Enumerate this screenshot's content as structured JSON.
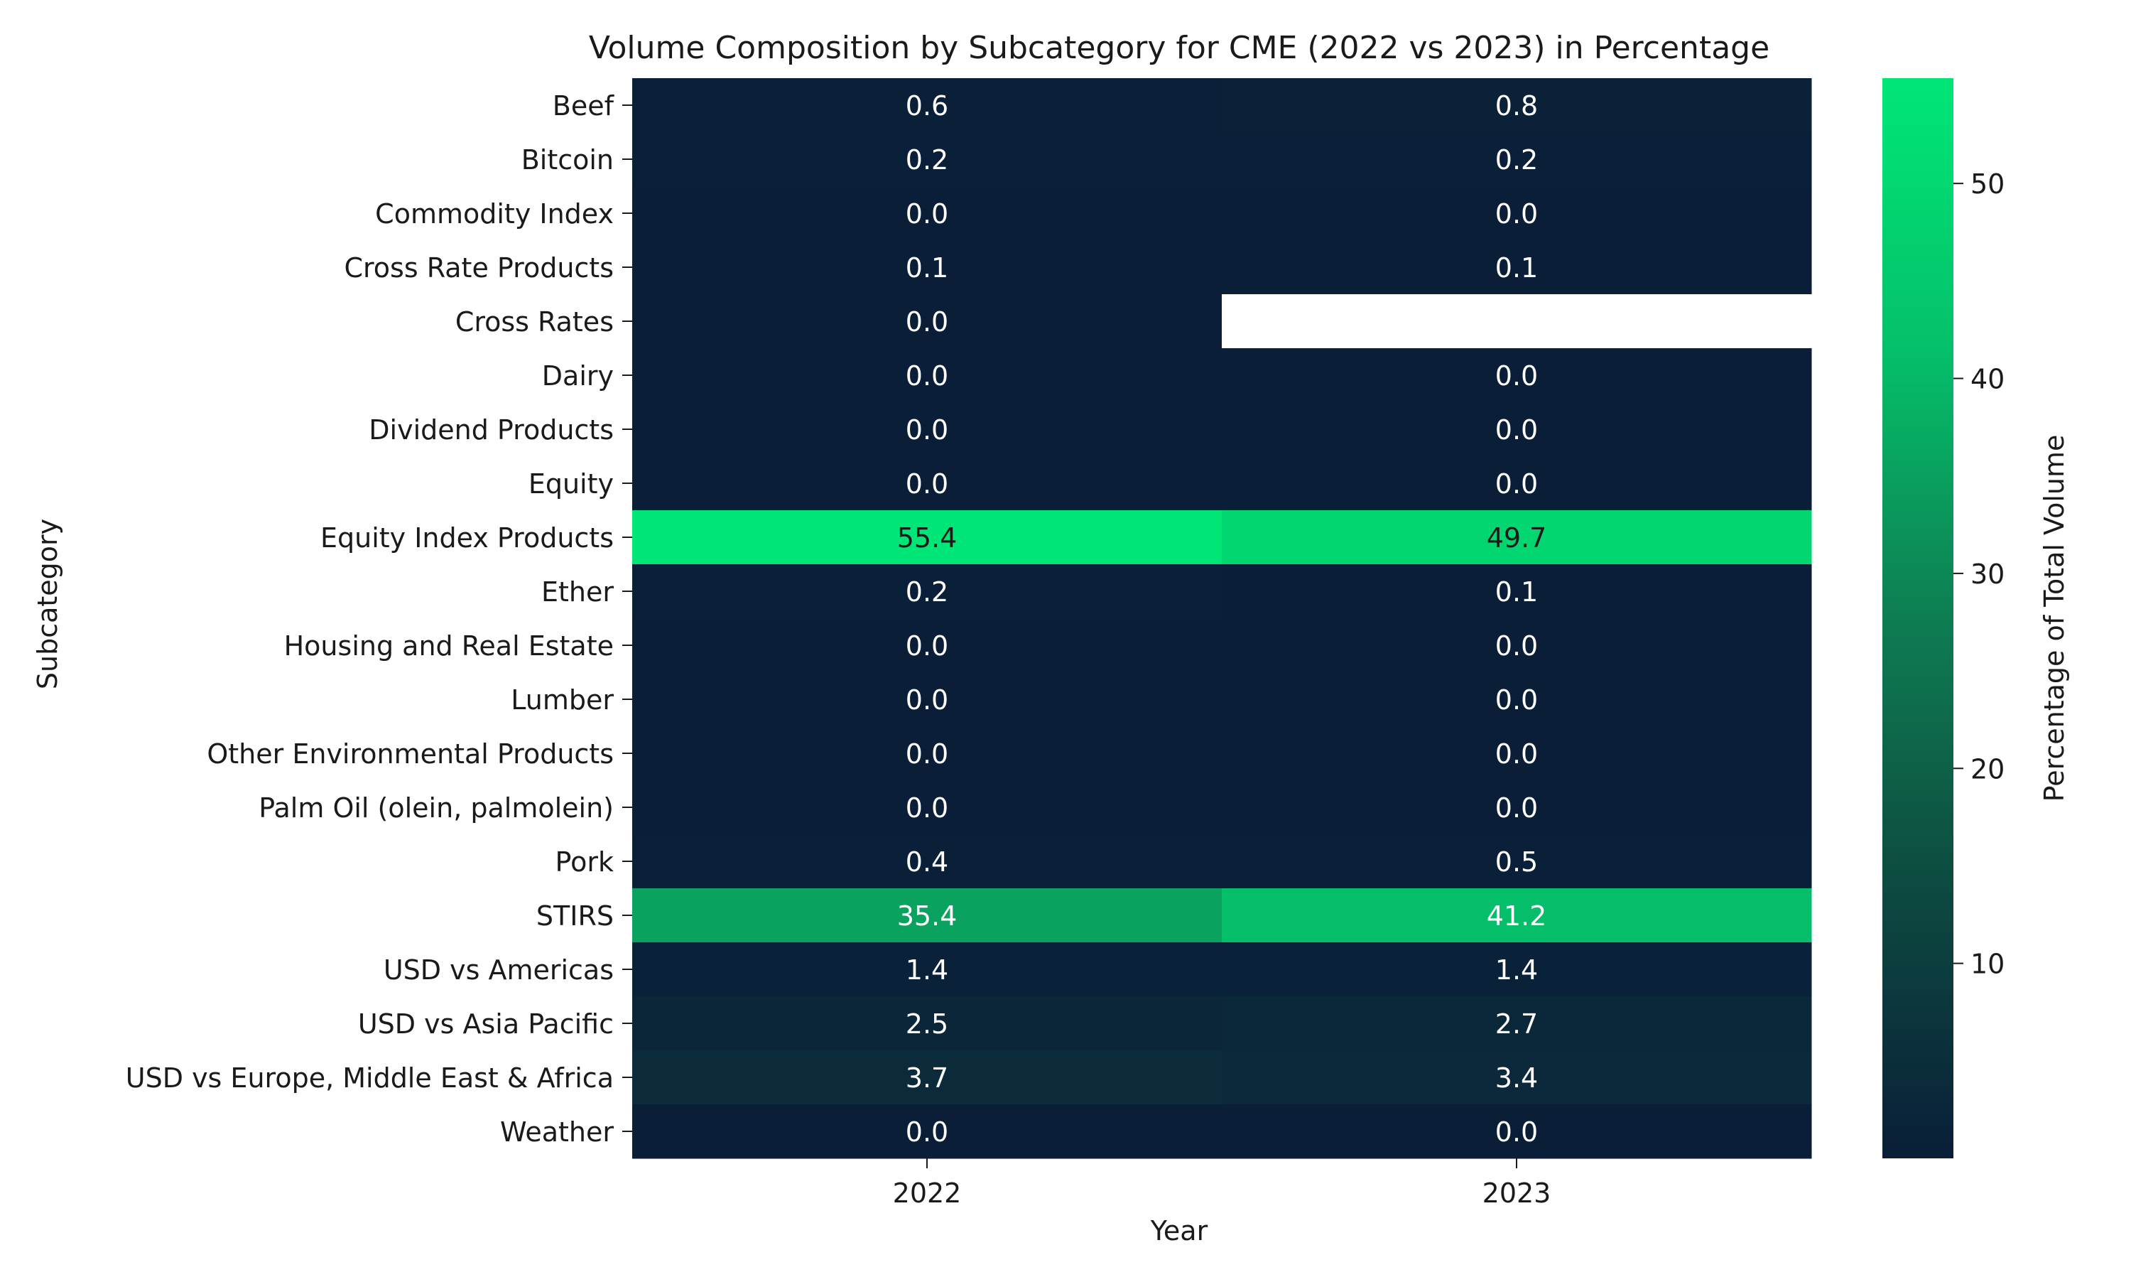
{
  "chart_data": {
    "type": "heatmap",
    "title": "Volume Composition by Subcategory for CME (2022 vs 2023) in Percentage",
    "xlabel": "Year",
    "ylabel": "Subcategory",
    "x": [
      "2022",
      "2023"
    ],
    "y": [
      "Beef",
      "Bitcoin",
      "Commodity Index",
      "Cross Rate Products",
      "Cross Rates",
      "Dairy",
      "Dividend Products",
      "Equity",
      "Equity Index Products",
      "Ether",
      "Housing and Real Estate",
      "Lumber",
      "Other Environmental Products",
      "Palm Oil (olein, palmolein)",
      "Pork",
      "STIRS",
      "USD vs Americas",
      "USD vs Asia Pacific",
      "USD vs Europe, Middle East & Africa",
      "Weather"
    ],
    "values": [
      [
        0.6,
        0.8
      ],
      [
        0.2,
        0.2
      ],
      [
        0.0,
        0.0
      ],
      [
        0.1,
        0.1
      ],
      [
        0.0,
        null
      ],
      [
        0.0,
        0.0
      ],
      [
        0.0,
        0.0
      ],
      [
        0.0,
        0.0
      ],
      [
        55.4,
        49.7
      ],
      [
        0.2,
        0.1
      ],
      [
        0.0,
        0.0
      ],
      [
        0.0,
        0.0
      ],
      [
        0.0,
        0.0
      ],
      [
        0.0,
        0.0
      ],
      [
        0.4,
        0.5
      ],
      [
        35.4,
        41.2
      ],
      [
        1.4,
        1.4
      ],
      [
        2.5,
        2.7
      ],
      [
        3.7,
        3.4
      ],
      [
        0.0,
        0.0
      ]
    ],
    "colorbar": {
      "label": "Percentage of Total Volume",
      "ticks": [
        10,
        20,
        30,
        40,
        50
      ],
      "range": [
        0.0,
        55.4
      ],
      "colors": [
        "#0a1e38",
        "#0d4a40",
        "#0e7d52",
        "#05c06a",
        "#00e676"
      ]
    },
    "annotation_format": "one decimal",
    "missing_cell_color": "#ffffff"
  }
}
